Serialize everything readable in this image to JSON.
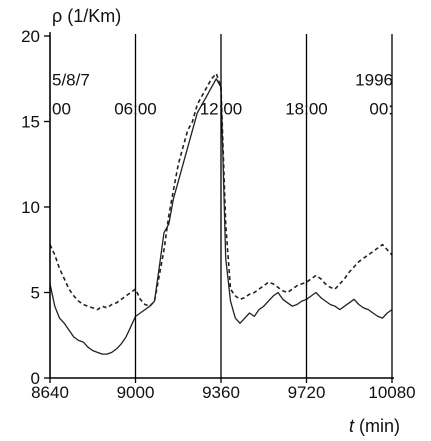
{
  "chart_data": {
    "type": "line",
    "ylabel": "ρ (1/Km)",
    "xlabel_var": "t",
    "xlabel_unit": " (min)",
    "xlim": [
      8640,
      10080
    ],
    "ylim": [
      0,
      20
    ],
    "xticks": [
      8640,
      9000,
      9360,
      9720,
      10080
    ],
    "yticks": [
      0,
      5,
      10,
      15,
      20
    ],
    "vlines": [
      8640,
      9000,
      9360,
      9720,
      10080
    ],
    "annotations": [
      {
        "text": "5/8/7",
        "x": 8640,
        "y": 17.1
      },
      {
        "text": "00",
        "x": 8640,
        "y": 15.4
      },
      {
        "text": "06:00",
        "x": 9000,
        "y": 15.4
      },
      {
        "text": "12:00",
        "x": 9360,
        "y": 15.4
      },
      {
        "text": "18:00",
        "x": 9720,
        "y": 15.4
      },
      {
        "text": "1996",
        "x": 10080,
        "y": 17.1
      },
      {
        "text": "00:",
        "x": 10080,
        "y": 15.4
      }
    ],
    "series": [
      {
        "style": "solid",
        "x": [
          8640,
          8660,
          8680,
          8700,
          8720,
          8740,
          8760,
          8780,
          8800,
          8820,
          8840,
          8860,
          8880,
          8900,
          8920,
          8940,
          8960,
          8980,
          9000,
          9020,
          9040,
          9060,
          9080,
          9100,
          9120,
          9140,
          9160,
          9180,
          9200,
          9220,
          9240,
          9260,
          9280,
          9300,
          9320,
          9340,
          9360,
          9380,
          9400,
          9420,
          9440,
          9460,
          9480,
          9500,
          9520,
          9540,
          9560,
          9580,
          9600,
          9620,
          9640,
          9660,
          9680,
          9700,
          9720,
          9740,
          9760,
          9780,
          9800,
          9820,
          9840,
          9860,
          9880,
          9900,
          9920,
          9940,
          9960,
          9980,
          10000,
          10020,
          10040,
          10060,
          10080
        ],
        "y": [
          5.5,
          4.2,
          3.5,
          3.2,
          2.8,
          2.4,
          2.2,
          2.1,
          1.8,
          1.6,
          1.5,
          1.4,
          1.4,
          1.5,
          1.7,
          2.0,
          2.4,
          3.0,
          3.6,
          3.8,
          4.0,
          4.2,
          4.5,
          6.5,
          8.5,
          9.0,
          10.5,
          11.5,
          12.5,
          13.5,
          14.5,
          15.5,
          16.0,
          16.5,
          17.0,
          17.5,
          17.0,
          7.0,
          4.5,
          3.5,
          3.2,
          3.5,
          3.8,
          3.6,
          4.0,
          4.2,
          4.5,
          4.8,
          5.0,
          4.6,
          4.4,
          4.2,
          4.3,
          4.5,
          4.6,
          4.8,
          5.0,
          4.7,
          4.5,
          4.3,
          4.2,
          4.0,
          4.2,
          4.4,
          4.6,
          4.3,
          4.1,
          4.0,
          3.8,
          3.6,
          3.5,
          3.8,
          4.0
        ]
      },
      {
        "style": "dashed",
        "x": [
          8640,
          8660,
          8680,
          8700,
          8720,
          8740,
          8760,
          8780,
          8800,
          8820,
          8840,
          8860,
          8880,
          8900,
          8920,
          8940,
          8960,
          8980,
          9000,
          9020,
          9040,
          9060,
          9080,
          9100,
          9120,
          9140,
          9160,
          9180,
          9200,
          9220,
          9240,
          9260,
          9280,
          9300,
          9320,
          9340,
          9360,
          9380,
          9400,
          9420,
          9440,
          9460,
          9480,
          9500,
          9520,
          9540,
          9560,
          9580,
          9600,
          9620,
          9640,
          9660,
          9680,
          9700,
          9720,
          9740,
          9760,
          9780,
          9800,
          9820,
          9840,
          9860,
          9880,
          9900,
          9920,
          9940,
          9960,
          9980,
          10000,
          10020,
          10040,
          10060,
          10080
        ],
        "y": [
          7.8,
          7.2,
          6.4,
          5.8,
          5.2,
          4.8,
          4.5,
          4.3,
          4.2,
          4.1,
          4.0,
          4.2,
          4.1,
          4.3,
          4.4,
          4.6,
          4.8,
          5.0,
          5.2,
          4.6,
          4.3,
          4.2,
          4.5,
          6.0,
          7.5,
          9.5,
          11.0,
          12.5,
          13.5,
          14.5,
          15.0,
          16.0,
          16.5,
          17.0,
          17.5,
          17.8,
          17.0,
          9.0,
          5.2,
          4.8,
          4.6,
          4.7,
          4.9,
          5.0,
          5.2,
          5.4,
          5.6,
          5.5,
          5.3,
          5.1,
          5.0,
          5.2,
          5.4,
          5.5,
          5.6,
          5.8,
          6.0,
          5.8,
          5.5,
          5.3,
          5.2,
          5.5,
          5.8,
          6.2,
          6.5,
          6.8,
          7.0,
          7.2,
          7.4,
          7.6,
          7.8,
          7.5,
          7.2
        ]
      }
    ]
  }
}
